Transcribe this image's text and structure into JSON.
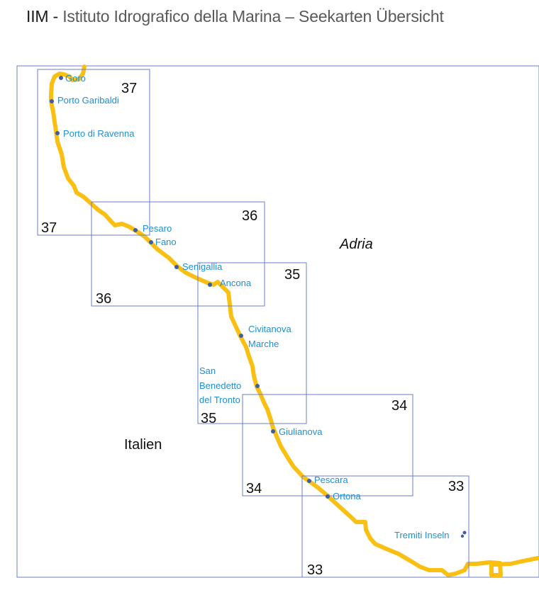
{
  "header": {
    "brand": "IIM -",
    "subtitle": "Istituto Idrografico della Marina – Seekarten Übersicht"
  },
  "colors": {
    "coastline": "#f9bf13",
    "chart_frame": "#6b7ec9",
    "outer_frame": "#6b7ec9",
    "port_dot": "#3b5ea6",
    "port_label": "#1f8fd0",
    "text": "#111111"
  },
  "regions": {
    "sea": "Adria",
    "land": "Italien"
  },
  "charts": [
    {
      "id": "37",
      "label_top": "37",
      "label_bottom": "37"
    },
    {
      "id": "36",
      "label_top": "36",
      "label_bottom": "36"
    },
    {
      "id": "35",
      "label_top": "35",
      "label_bottom": "35"
    },
    {
      "id": "34",
      "label_top": "34",
      "label_bottom": "34"
    },
    {
      "id": "33",
      "label_top": "33",
      "label_bottom": "33"
    }
  ],
  "ports": [
    {
      "name": "Goro"
    },
    {
      "name": "Porto Garibaldi"
    },
    {
      "name": "Porto di Ravenna"
    },
    {
      "name": "Pesaro"
    },
    {
      "name": "Fano"
    },
    {
      "name": "Senigallia"
    },
    {
      "name": "Ancona"
    },
    {
      "name_line1": "Civitanova",
      "name_line2": "Marche"
    },
    {
      "name_line1": "San",
      "name_line2": "Benedetto",
      "name_line3": "del Tronto"
    },
    {
      "name": "Giulianova"
    },
    {
      "name": "Pescara"
    },
    {
      "name": "Ortona"
    },
    {
      "name": "Tremiti Inseln"
    }
  ]
}
